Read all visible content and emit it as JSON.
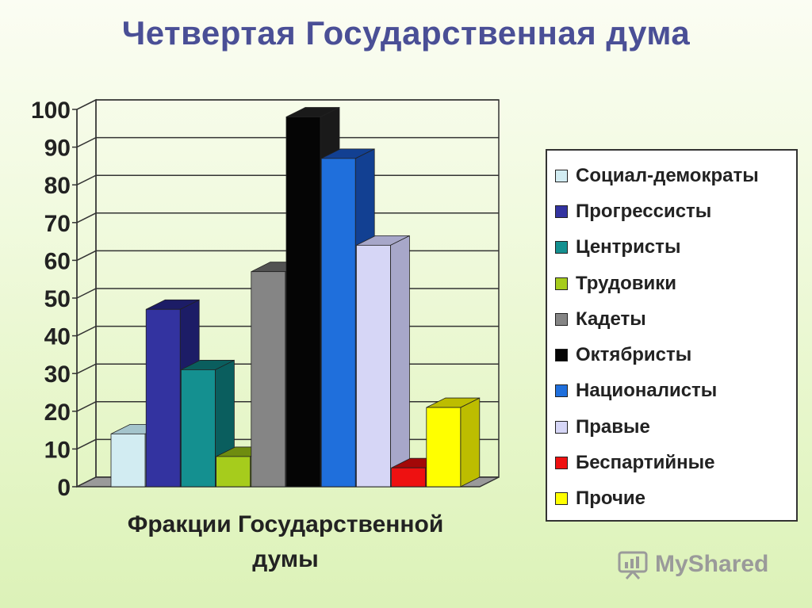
{
  "title": "Четвертая Государственная дума",
  "chart_data": {
    "type": "bar",
    "title": "Четвертая Государственная дума",
    "xlabel": "Фракции Государственной думы",
    "ylabel": "",
    "ylim": [
      0,
      100
    ],
    "yticks": [
      0,
      10,
      20,
      30,
      40,
      50,
      60,
      70,
      80,
      90,
      100
    ],
    "grid": true,
    "legend_position": "right",
    "series": [
      {
        "name": "Социал-демократы",
        "value": 14,
        "color": "#d2ecf2",
        "side_color": "#a4c4cc"
      },
      {
        "name": "Прогрессисты",
        "value": 47,
        "color": "#3333a0",
        "side_color": "#1c1c66"
      },
      {
        "name": "Центристы",
        "value": 31,
        "color": "#149090",
        "side_color": "#0a5e5e"
      },
      {
        "name": "Трудовики",
        "value": 8,
        "color": "#a6cc1c",
        "side_color": "#6f8c10"
      },
      {
        "name": "Кадеты",
        "value": 57,
        "color": "#858585",
        "side_color": "#525252"
      },
      {
        "name": "Октябристы",
        "value": 98,
        "color": "#050505",
        "side_color": "#1a1a1a"
      },
      {
        "name": "Националисты",
        "value": 87,
        "color": "#1f6fdc",
        "side_color": "#124092"
      },
      {
        "name": "Правые",
        "value": 64,
        "color": "#d6d6f6",
        "side_color": "#a7a7c9"
      },
      {
        "name": "Беспартийные",
        "value": 5,
        "color": "#ee1111",
        "side_color": "#a30808"
      },
      {
        "name": "Прочие",
        "value": 21,
        "color": "#ffff00",
        "side_color": "#bdbd00"
      }
    ]
  },
  "watermark": {
    "text": "MyShared"
  }
}
